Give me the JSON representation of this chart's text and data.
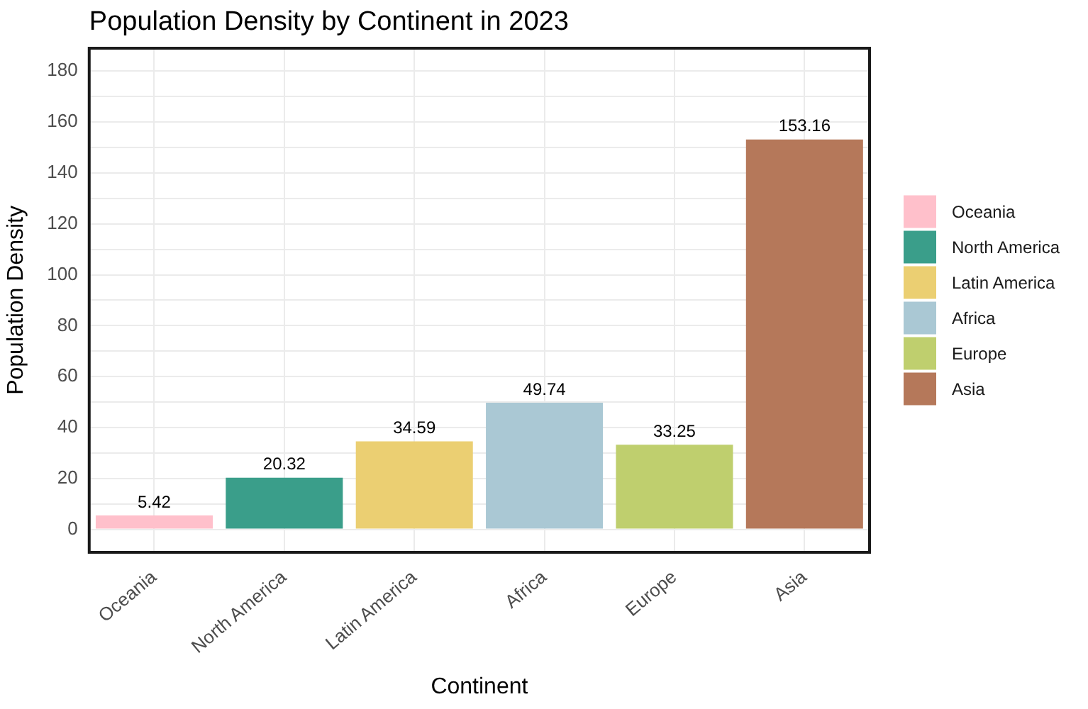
{
  "chart_data": {
    "type": "bar",
    "title": "Population Density by Continent in 2023",
    "xlabel": "Continent",
    "ylabel": "Population Density",
    "categories": [
      "Oceania",
      "North America",
      "Latin America",
      "Africa",
      "Europe",
      "Asia"
    ],
    "series": [
      {
        "name": "Oceania",
        "color": "#ffc0cb",
        "values": [
          5.42,
          null,
          null,
          null,
          null,
          null
        ]
      },
      {
        "name": "North America",
        "color": "#3a9e8a",
        "values": [
          null,
          20.32,
          null,
          null,
          null,
          null
        ]
      },
      {
        "name": "Latin America",
        "color": "#ebcf72",
        "values": [
          null,
          null,
          34.59,
          null,
          null,
          null
        ]
      },
      {
        "name": "Africa",
        "color": "#aac8d4",
        "values": [
          null,
          null,
          null,
          49.74,
          null,
          null
        ]
      },
      {
        "name": "Europe",
        "color": "#bfcf6e",
        "values": [
          null,
          null,
          null,
          null,
          33.25,
          null
        ]
      },
      {
        "name": "Asia",
        "color": "#b5785a",
        "values": [
          null,
          null,
          null,
          null,
          null,
          153.16
        ]
      }
    ],
    "ylim": [
      -9,
      189
    ],
    "yticks": [
      0,
      {
        "value": 10,
        "label": null
      },
      20,
      {
        "value": 30,
        "label": null
      },
      40,
      {
        "value": 50,
        "label": null
      },
      60,
      {
        "value": 70,
        "label": null
      },
      80,
      {
        "value": 90,
        "label": null
      },
      100,
      {
        "value": 110,
        "label": null
      },
      120,
      {
        "value": 130,
        "label": null
      },
      140,
      {
        "value": 150,
        "label": null
      },
      160,
      {
        "value": 170,
        "label": null
      },
      180
    ],
    "grid": true,
    "legend": "right",
    "data_labels": true
  }
}
